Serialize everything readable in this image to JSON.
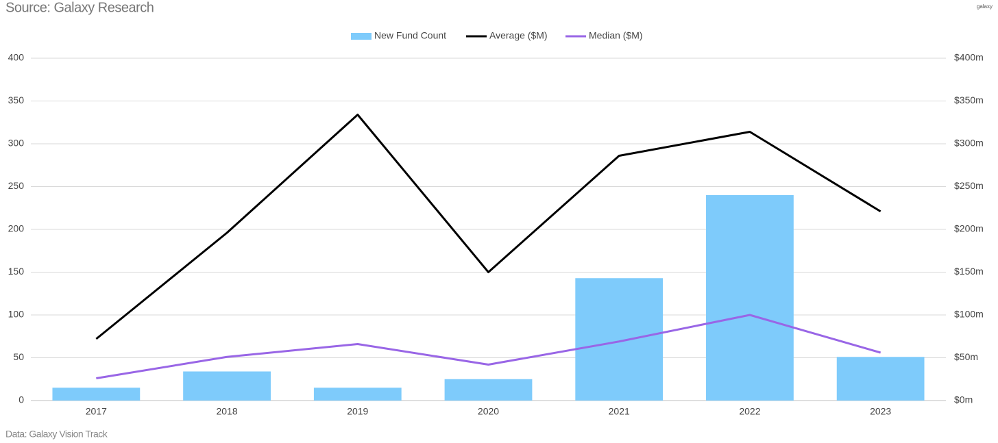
{
  "header": {
    "source": "Source: Galaxy Research",
    "logo": "galaxy"
  },
  "footer": {
    "note": "Data: Galaxy Vision Track"
  },
  "chart_data": {
    "type": "bar",
    "categories": [
      "2017",
      "2018",
      "2019",
      "2020",
      "2021",
      "2022",
      "2023"
    ],
    "series": [
      {
        "name": "New Fund Count",
        "type": "bar",
        "color": "#7ecbfb",
        "values": [
          15,
          34,
          15,
          25,
          143,
          240,
          51
        ]
      },
      {
        "name": "Average ($M)",
        "type": "line",
        "axis": "y2",
        "color": "#000000",
        "values": [
          72,
          196,
          334,
          150,
          286,
          314,
          221
        ]
      },
      {
        "name": "Median ($M)",
        "type": "line",
        "axis": "y2",
        "color": "#9966e6",
        "values": [
          26,
          51,
          66,
          42,
          69,
          100,
          56
        ]
      }
    ],
    "ylim": [
      0,
      400
    ],
    "yticks": [
      0,
      50,
      100,
      150,
      200,
      250,
      300,
      350,
      400
    ],
    "y2lim": [
      0,
      400
    ],
    "y2ticks": [
      {
        "value": 0,
        "label": "$0m"
      },
      {
        "value": 50,
        "label": "$50m"
      },
      {
        "value": 100,
        "label": "$100m"
      },
      {
        "value": 150,
        "label": "$150m"
      },
      {
        "value": 200,
        "label": "$200m"
      },
      {
        "value": 250,
        "label": "$250m"
      },
      {
        "value": 300,
        "label": "$300m"
      },
      {
        "value": 350,
        "label": "$350m"
      },
      {
        "value": 400,
        "label": "$400m"
      }
    ],
    "grid": true,
    "legend": "top"
  }
}
